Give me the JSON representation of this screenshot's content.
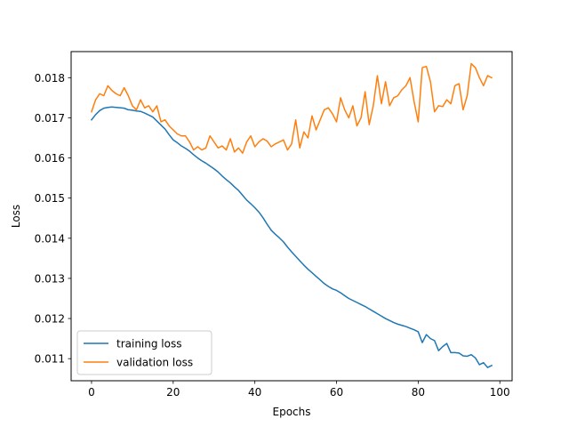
{
  "chart_data": {
    "type": "line",
    "title": "",
    "xlabel": "Epochs",
    "ylabel": "Loss",
    "xlim": [
      -5,
      103
    ],
    "ylim": [
      0.01045,
      0.01865
    ],
    "xticks": [
      0,
      20,
      40,
      60,
      80,
      100
    ],
    "yticks": [
      0.011,
      0.012,
      0.013,
      0.014,
      0.015,
      0.016,
      0.017,
      0.018
    ],
    "ytick_labels": [
      "0.011",
      "0.012",
      "0.013",
      "0.014",
      "0.015",
      "0.016",
      "0.017",
      "0.018"
    ],
    "grid": false,
    "legend_position": "lower-left",
    "x": [
      0,
      1,
      2,
      3,
      4,
      5,
      6,
      7,
      8,
      9,
      10,
      11,
      12,
      13,
      14,
      15,
      16,
      17,
      18,
      19,
      20,
      21,
      22,
      23,
      24,
      25,
      26,
      27,
      28,
      29,
      30,
      31,
      32,
      33,
      34,
      35,
      36,
      37,
      38,
      39,
      40,
      41,
      42,
      43,
      44,
      45,
      46,
      47,
      48,
      49,
      50,
      51,
      52,
      53,
      54,
      55,
      56,
      57,
      58,
      59,
      60,
      61,
      62,
      63,
      64,
      65,
      66,
      67,
      68,
      69,
      70,
      71,
      72,
      73,
      74,
      75,
      76,
      77,
      78,
      79,
      80,
      81,
      82,
      83,
      84,
      85,
      86,
      87,
      88,
      89,
      90,
      91,
      92,
      93,
      94,
      95,
      96,
      97,
      98
    ],
    "series": [
      {
        "name": "training loss",
        "color": "#1f77b4",
        "values": [
          0.01695,
          0.01708,
          0.01718,
          0.01724,
          0.01726,
          0.01727,
          0.01726,
          0.01725,
          0.01724,
          0.0172,
          0.01719,
          0.01717,
          0.01716,
          0.01712,
          0.01707,
          0.01702,
          0.01692,
          0.01682,
          0.01672,
          0.01658,
          0.01645,
          0.01638,
          0.0163,
          0.01624,
          0.01617,
          0.01608,
          0.016,
          0.01593,
          0.01587,
          0.0158,
          0.01573,
          0.01565,
          0.01555,
          0.01546,
          0.01538,
          0.01528,
          0.01519,
          0.01507,
          0.01495,
          0.01486,
          0.01476,
          0.01465,
          0.01451,
          0.01435,
          0.0142,
          0.0141,
          0.01401,
          0.01391,
          0.01378,
          0.01366,
          0.01355,
          0.01344,
          0.01333,
          0.01323,
          0.01314,
          0.01305,
          0.01296,
          0.01287,
          0.0128,
          0.01274,
          0.0127,
          0.01264,
          0.01257,
          0.0125,
          0.01245,
          0.0124,
          0.01235,
          0.0123,
          0.01224,
          0.01218,
          0.01212,
          0.01206,
          0.012,
          0.01195,
          0.0119,
          0.01186,
          0.01183,
          0.0118,
          0.01176,
          0.01172,
          0.01167,
          0.0114,
          0.0116,
          0.0115,
          0.01145,
          0.0112,
          0.0113,
          0.01138,
          0.01115,
          0.01115,
          0.01114,
          0.01107,
          0.01106,
          0.0111,
          0.01102,
          0.01085,
          0.0109,
          0.01078,
          0.01083
        ]
      },
      {
        "name": "validation loss",
        "color": "#ff7f0e",
        "values": [
          0.01715,
          0.01745,
          0.0176,
          0.01755,
          0.0178,
          0.01768,
          0.0176,
          0.01755,
          0.01775,
          0.01755,
          0.0173,
          0.0172,
          0.01745,
          0.01725,
          0.0173,
          0.01715,
          0.0173,
          0.0169,
          0.01695,
          0.0168,
          0.0167,
          0.0166,
          0.01655,
          0.01655,
          0.0164,
          0.0162,
          0.01628,
          0.0162,
          0.01625,
          0.01655,
          0.0164,
          0.01625,
          0.0163,
          0.0162,
          0.01648,
          0.01615,
          0.01625,
          0.01612,
          0.0164,
          0.01655,
          0.01628,
          0.0164,
          0.01648,
          0.01642,
          0.01628,
          0.01635,
          0.0164,
          0.01645,
          0.0162,
          0.01635,
          0.01695,
          0.01625,
          0.01665,
          0.0165,
          0.01705,
          0.0167,
          0.01695,
          0.0172,
          0.01725,
          0.0171,
          0.0169,
          0.0175,
          0.0172,
          0.017,
          0.0173,
          0.0168,
          0.017,
          0.01765,
          0.01683,
          0.0173,
          0.01805,
          0.01735,
          0.0179,
          0.0173,
          0.0175,
          0.01755,
          0.0177,
          0.0178,
          0.018,
          0.0174,
          0.0169,
          0.01825,
          0.01828,
          0.0179,
          0.01715,
          0.0173,
          0.01728,
          0.01745,
          0.01735,
          0.0178,
          0.01785,
          0.0172,
          0.01755,
          0.01835,
          0.01825,
          0.018,
          0.0178,
          0.01805,
          0.018
        ]
      }
    ]
  }
}
